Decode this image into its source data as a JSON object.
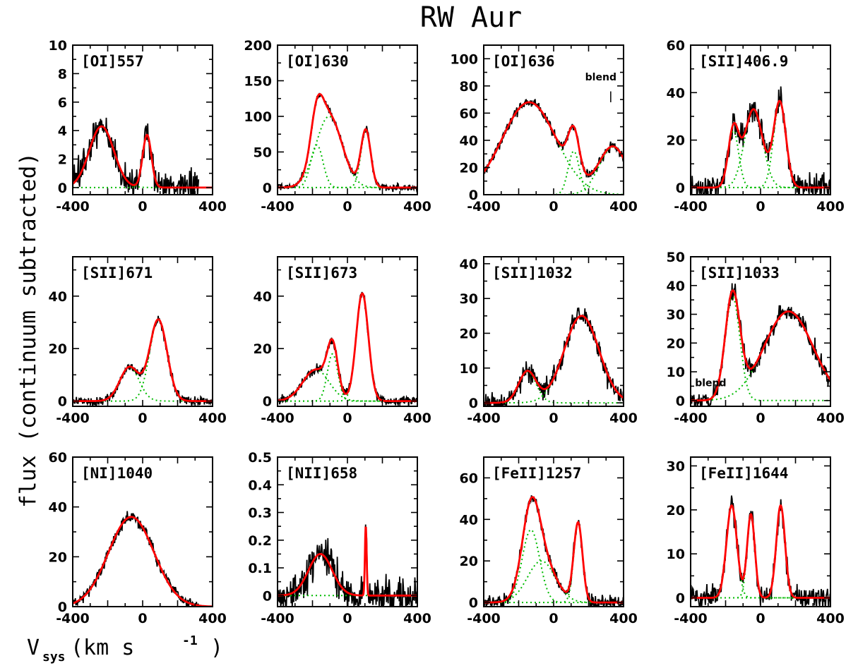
{
  "figure": {
    "title": "RW Aur",
    "ylabel": "flux (continuum subtracted)",
    "xlabel_main": "V",
    "xlabel_sub": "sys",
    "xlabel_rest": " (km s",
    "xlabel_exp": "-1",
    "xlabel_close": ")"
  },
  "colors": {
    "data": "#000000",
    "fit": "#ff0000",
    "components": "#00bb00"
  },
  "chart_data": [
    {
      "type": "line",
      "label": "[OI]557",
      "xlim": [
        -400,
        400
      ],
      "ylim": [
        -0.5,
        10
      ],
      "yticks": [
        0,
        2,
        4,
        6,
        8,
        10
      ],
      "xticks": [
        -400,
        0,
        400
      ],
      "xmax_data": 320,
      "noise": 0.9,
      "seed": 11,
      "components": [
        {
          "amp": 4.3,
          "mu": -235,
          "sig": 70
        },
        {
          "amp": 3.7,
          "mu": 25,
          "sig": 25
        }
      ]
    },
    {
      "type": "line",
      "label": "[OI]630",
      "xlim": [
        -400,
        400
      ],
      "ylim": [
        -10,
        200
      ],
      "yticks": [
        0,
        50,
        100,
        150,
        200
      ],
      "xticks": [
        -400,
        0,
        400
      ],
      "noise": 4,
      "seed": 12,
      "components": [
        {
          "amp": 60,
          "mu": -175,
          "sig": 35
        },
        {
          "amp": 100,
          "mu": -105,
          "sig": 75
        },
        {
          "amp": 80,
          "mu": 105,
          "sig": 28
        }
      ]
    },
    {
      "type": "line",
      "label": "[OI]636",
      "xlim": [
        -400,
        400
      ],
      "ylim": [
        0,
        110
      ],
      "yticks": [
        0,
        20,
        40,
        60,
        80,
        100
      ],
      "xticks": [
        -400,
        0,
        400
      ],
      "noise": 3,
      "seed": 13,
      "annotation": {
        "text": "blend",
        "x": 270,
        "y": 84,
        "tick_y": [
          68,
          76
        ]
      },
      "components": [
        {
          "amp": 68,
          "mu": -140,
          "sig": 155
        },
        {
          "amp": 32,
          "mu": 115,
          "sig": 32
        },
        {
          "amp": 35,
          "mu": 340,
          "sig": 80
        }
      ]
    },
    {
      "type": "line",
      "label": "[SII]406.9",
      "xlim": [
        -400,
        400
      ],
      "ylim": [
        -3,
        60
      ],
      "yticks": [
        0,
        20,
        40,
        60
      ],
      "xticks": [
        -400,
        0,
        400
      ],
      "noise": 4,
      "seed": 14,
      "components": [
        {
          "amp": 24,
          "mu": -155,
          "sig": 30
        },
        {
          "amp": 33,
          "mu": -40,
          "sig": 52
        },
        {
          "amp": 36,
          "mu": 110,
          "sig": 35
        }
      ]
    },
    {
      "type": "line",
      "label": "[SII]671",
      "xlim": [
        -400,
        400
      ],
      "ylim": [
        -2,
        55
      ],
      "yticks": [
        0,
        20,
        40
      ],
      "xticks": [
        -400,
        0,
        400
      ],
      "noise": 1.4,
      "seed": 15,
      "components": [
        {
          "amp": 13,
          "mu": -75,
          "sig": 55
        },
        {
          "amp": 31,
          "mu": 90,
          "sig": 50
        }
      ]
    },
    {
      "type": "line",
      "label": "[SII]673",
      "xlim": [
        -400,
        400
      ],
      "ylim": [
        -2,
        55
      ],
      "yticks": [
        0,
        20,
        40
      ],
      "xticks": [
        -400,
        0,
        400
      ],
      "noise": 1.4,
      "seed": 16,
      "components": [
        {
          "amp": 12,
          "mu": -180,
          "sig": 75
        },
        {
          "amp": 18,
          "mu": -85,
          "sig": 30
        },
        {
          "amp": 41,
          "mu": 85,
          "sig": 35
        }
      ]
    },
    {
      "type": "line",
      "label": "[SII]1032",
      "xlim": [
        -400,
        400
      ],
      "ylim": [
        -1,
        42
      ],
      "yticks": [
        0,
        10,
        20,
        30,
        40
      ],
      "xticks": [
        -400,
        0,
        400
      ],
      "noise": 2.5,
      "seed": 17,
      "components": [
        {
          "amp": 9,
          "mu": -150,
          "sig": 50
        },
        {
          "amp": 25,
          "mu": 160,
          "sig": 100
        }
      ]
    },
    {
      "type": "line",
      "label": "[SII]1033",
      "xlim": [
        -400,
        400
      ],
      "ylim": [
        -2,
        50
      ],
      "yticks": [
        0,
        10,
        20,
        30,
        40,
        50
      ],
      "xticks": [
        -400,
        0,
        400
      ],
      "noise": 2.5,
      "seed": 18,
      "annotation": {
        "text": "blend",
        "x": -375,
        "y": 5,
        "tick_y": [
          10,
          19
        ]
      },
      "components": [
        {
          "amp": 36,
          "mu": -160,
          "sig": 42
        },
        {
          "amp": 31,
          "mu": 160,
          "sig": 140
        }
      ]
    },
    {
      "type": "line",
      "label": "[NI]1040",
      "xlim": [
        -400,
        400
      ],
      "ylim": [
        0,
        60
      ],
      "yticks": [
        0,
        20,
        40,
        60
      ],
      "xticks": [
        -400,
        0,
        400
      ],
      "xmax_data": 320,
      "noise": 2,
      "seed": 19,
      "components": [
        {
          "amp": 36,
          "mu": -65,
          "sig": 130
        }
      ]
    },
    {
      "type": "line",
      "label": "[NII]658",
      "xlim": [
        -400,
        400
      ],
      "ylim": [
        -0.04,
        0.5
      ],
      "yticks": [
        0,
        0.1,
        0.2,
        0.3,
        0.4,
        0.5
      ],
      "xticks": [
        -400,
        0,
        400
      ],
      "noise": 0.05,
      "seed": 20,
      "components": [
        {
          "amp": 0.15,
          "mu": -155,
          "sig": 68
        },
        {
          "amp": 0.25,
          "mu": 105,
          "sig": 5
        }
      ]
    },
    {
      "type": "line",
      "label": "[FeII]1257",
      "xlim": [
        -400,
        400
      ],
      "ylim": [
        -2,
        70
      ],
      "yticks": [
        0,
        20,
        40,
        60
      ],
      "xticks": [
        -400,
        0,
        400
      ],
      "noise": 2.5,
      "seed": 21,
      "components": [
        {
          "amp": 35,
          "mu": -130,
          "sig": 50
        },
        {
          "amp": 20,
          "mu": -70,
          "sig": 80
        },
        {
          "amp": 38,
          "mu": 140,
          "sig": 25
        }
      ]
    },
    {
      "type": "line",
      "label": "[FeII]1644",
      "xlim": [
        -400,
        400
      ],
      "ylim": [
        -2,
        32
      ],
      "yticks": [
        0,
        10,
        20,
        30
      ],
      "xticks": [
        -400,
        0,
        400
      ],
      "noise": 2,
      "seed": 22,
      "components": [
        {
          "amp": 21,
          "mu": -165,
          "sig": 30
        },
        {
          "amp": 19,
          "mu": -55,
          "sig": 22
        },
        {
          "amp": 21,
          "mu": 115,
          "sig": 25
        }
      ]
    }
  ]
}
